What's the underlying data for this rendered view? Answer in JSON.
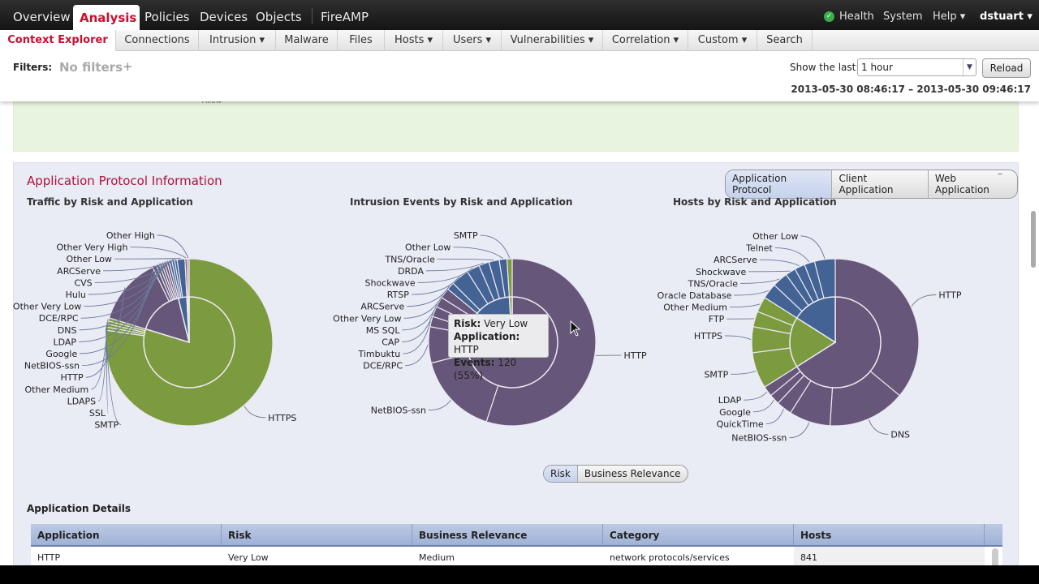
{
  "topnav": {
    "items": [
      "Overview",
      "Analysis",
      "Policies",
      "Devices",
      "Objects",
      "FireAMP"
    ],
    "right": {
      "health": "Health",
      "system": "System",
      "help": "Help ▾",
      "user": "dstuart ▾"
    }
  },
  "subnav": {
    "items": [
      "Context Explorer",
      "Connections",
      "Intrusion ▾",
      "Malware",
      "Files",
      "Hosts ▾",
      "Users ▾",
      "Vulnerabilities ▾",
      "Correlation ▾",
      "Custom ▾",
      "Search"
    ]
  },
  "filters": {
    "label": "Filters:",
    "value": "No filters",
    "add": "+",
    "show_last_label": "Show the last:",
    "show_last_value": "1 hour",
    "reload": "Reload",
    "time_range": "2013-05-30 08:46:17 – 2013-05-30 09:46:17"
  },
  "green_panel": {
    "partial_label": "Allow"
  },
  "app_panel": {
    "title": "Application Protocol Information",
    "view_tabs": [
      "Application Protocol",
      "Client Application",
      "Web Application"
    ],
    "collapse": "–",
    "group_tabs": [
      "Risk",
      "Business Relevance"
    ],
    "tooltip": {
      "risk_label": "Risk:",
      "risk": "Very Low",
      "app_label": "Application:",
      "app": "HTTP",
      "events_label": "Events:",
      "events": "120 (55%)"
    }
  },
  "colors": {
    "Very Low": "#66577a",
    "Low": "#426394",
    "Medium": "#7c9b3f",
    "High": "#b58aa6",
    "Very High": "#8c4a6e"
  },
  "chart_data": [
    {
      "type": "pie",
      "title": "Traffic by Risk and Application",
      "slices": [
        {
          "app": "HTTPS",
          "risk": "Medium",
          "value": 77
        },
        {
          "app": "SMTP",
          "risk": "Medium",
          "value": 0.6
        },
        {
          "app": "SSL",
          "risk": "Medium",
          "value": 0.6
        },
        {
          "app": "LDAPS",
          "risk": "Medium",
          "value": 0.6
        },
        {
          "app": "Other Medium",
          "risk": "Medium",
          "value": 0.6
        },
        {
          "app": "HTTP",
          "risk": "Very Low",
          "value": 13
        },
        {
          "app": "NetBIOS-ssn",
          "risk": "Very Low",
          "value": 0.8
        },
        {
          "app": "Google",
          "risk": "Very Low",
          "value": 0.6
        },
        {
          "app": "LDAP",
          "risk": "Very Low",
          "value": 0.5
        },
        {
          "app": "DNS",
          "risk": "Very Low",
          "value": 0.5
        },
        {
          "app": "DCE/RPC",
          "risk": "Very Low",
          "value": 0.5
        },
        {
          "app": "Other Very Low",
          "risk": "Very Low",
          "value": 0.5
        },
        {
          "app": "Hulu",
          "risk": "Low",
          "value": 0.5
        },
        {
          "app": "CVS",
          "risk": "Low",
          "value": 0.5
        },
        {
          "app": "ARCServe",
          "risk": "Low",
          "value": 0.5
        },
        {
          "app": "Other Low",
          "risk": "Low",
          "value": 1.5
        },
        {
          "app": "Other Very High",
          "risk": "Very High",
          "value": 0.4
        },
        {
          "app": "Other High",
          "risk": "High",
          "value": 0.4
        }
      ]
    },
    {
      "type": "pie",
      "title": "Intrusion Events by Risk and Application",
      "slices": [
        {
          "app": "HTTP",
          "risk": "Very Low",
          "value": 55
        },
        {
          "app": "NetBIOS-ssn",
          "risk": "Very Low",
          "value": 16
        },
        {
          "app": "DCE/RPC",
          "risk": "Very Low",
          "value": 7
        },
        {
          "app": "Timbuktu",
          "risk": "Very Low",
          "value": 2
        },
        {
          "app": "CAP",
          "risk": "Very Low",
          "value": 2
        },
        {
          "app": "MS SQL",
          "risk": "Very Low",
          "value": 2
        },
        {
          "app": "Other Very Low",
          "risk": "Very Low",
          "value": 2
        },
        {
          "app": "ARCServe",
          "risk": "Low",
          "value": 1.5
        },
        {
          "app": "RTSP",
          "risk": "Low",
          "value": 3.5
        },
        {
          "app": "Shockwave",
          "risk": "Low",
          "value": 2.5
        },
        {
          "app": "DRDA",
          "risk": "Low",
          "value": 2
        },
        {
          "app": "TNS/Oracle",
          "risk": "Low",
          "value": 2
        },
        {
          "app": "Other Low",
          "risk": "Low",
          "value": 1.5
        },
        {
          "app": "SMTP",
          "risk": "Medium",
          "value": 1
        }
      ]
    },
    {
      "type": "pie",
      "title": "Hosts by Risk and Application",
      "slices": [
        {
          "app": "HTTP",
          "risk": "Very Low",
          "value": 36
        },
        {
          "app": "DNS",
          "risk": "Very Low",
          "value": 15
        },
        {
          "app": "NetBIOS-ssn",
          "risk": "Very Low",
          "value": 8
        },
        {
          "app": "QuickTime",
          "risk": "Very Low",
          "value": 3
        },
        {
          "app": "Google",
          "risk": "Very Low",
          "value": 2
        },
        {
          "app": "LDAP",
          "risk": "Very Low",
          "value": 2
        },
        {
          "app": "SMTP",
          "risk": "Medium",
          "value": 7
        },
        {
          "app": "HTTPS",
          "risk": "Medium",
          "value": 5
        },
        {
          "app": "FTP",
          "risk": "Medium",
          "value": 3
        },
        {
          "app": "Other Medium",
          "risk": "Medium",
          "value": 3
        },
        {
          "app": "Oracle Database",
          "risk": "Low",
          "value": 3
        },
        {
          "app": "TNS/Oracle",
          "risk": "Low",
          "value": 3
        },
        {
          "app": "Shockwave",
          "risk": "Low",
          "value": 2
        },
        {
          "app": "ARCServe",
          "risk": "Low",
          "value": 2
        },
        {
          "app": "Telnet",
          "risk": "Low",
          "value": 2
        },
        {
          "app": "Other Low",
          "risk": "Low",
          "value": 4
        }
      ]
    }
  ],
  "details": {
    "title": "Application Details",
    "columns": [
      "Application",
      "Risk",
      "Business Relevance",
      "Category",
      "Hosts"
    ],
    "rows": [
      [
        "HTTP",
        "Very Low",
        "Medium",
        "network protocols/services",
        "841"
      ]
    ]
  }
}
